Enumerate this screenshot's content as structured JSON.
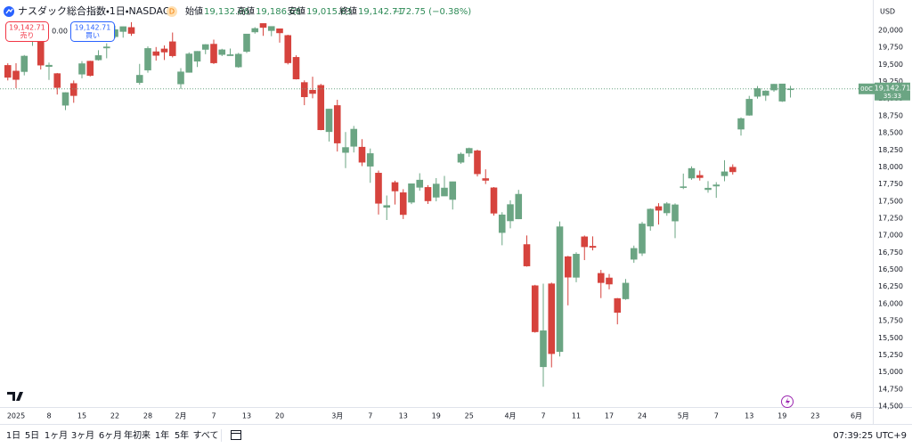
{
  "header": {
    "title": "ナスダック総合指数・1日・NASDAQ",
    "badge": "D",
    "open_label": "始値",
    "open": "19,132.06",
    "high_label": "高値",
    "high": "19,186.68",
    "low_label": "安値",
    "low": "19,015.63",
    "close_label": "終値",
    "close": "19,142.71",
    "change": "−72.75 (−0.38%)"
  },
  "trade_buttons": {
    "sell_price": "19,142.71",
    "sell_label": "売り",
    "spread": "0.00",
    "buy_price": "19,142.71",
    "buy_label": "買い"
  },
  "price_tag": {
    "label": "00C",
    "price": "19,142.71",
    "countdown": "35:33"
  },
  "toolbar": {
    "ranges": [
      "1日",
      "5日",
      "1ヶ月",
      "3ヶ月",
      "6ヶ月",
      "年初来",
      "1年",
      "5年",
      "すべて"
    ],
    "clock": "07:39:25 UTC+9"
  },
  "chart_data": {
    "type": "candlestick",
    "currency": "USD",
    "up_color": "#6ba583",
    "down_color": "#d6433d",
    "grid": false,
    "categories": [
      null,
      "2025",
      null,
      null,
      null,
      "8",
      null,
      null,
      null,
      "15",
      null,
      null,
      null,
      "22",
      null,
      null,
      null,
      "28",
      null,
      null,
      null,
      "2月",
      null,
      null,
      null,
      "7",
      null,
      null,
      null,
      "13",
      null,
      null,
      null,
      "20",
      null,
      null,
      null,
      null,
      null,
      null,
      "3月",
      null,
      null,
      null,
      "7",
      null,
      null,
      null,
      "13",
      null,
      null,
      null,
      "19",
      null,
      null,
      null,
      "25",
      null,
      null,
      null,
      null,
      "4月",
      null,
      null,
      null,
      "7",
      null,
      null,
      null,
      "11",
      null,
      null,
      null,
      "17",
      null,
      null,
      null,
      "24",
      null,
      null,
      null,
      null,
      "5月",
      null,
      null,
      null,
      "7",
      null,
      null,
      null,
      "13",
      null,
      null,
      null,
      "19",
      null,
      null,
      null,
      "23",
      null,
      null,
      null,
      null,
      "6月"
    ],
    "open": [
      19486,
      19403,
      19395,
      19851,
      19938,
      19469,
      19366,
      18903,
      19221,
      19358,
      19548,
      19567,
      19741,
      19906,
      19982,
      20041,
      19235,
      19418,
      19686,
      19727,
      19832,
      19215,
      19384,
      19547,
      19720,
      19797,
      19645,
      19628,
      19464,
      19690,
      19975,
      20099,
      19995,
      20022,
      19924,
      19604,
      19236,
      19123,
      19194,
      18516,
      18899,
      18212,
      18302,
      18290,
      18011,
      17910,
      17409,
      17772,
      17623,
      17484,
      17702,
      17701,
      17557,
      17575,
      17524,
      18069,
      18202,
      18236,
      17830,
      17695,
      17040,
      17211,
      17240,
      16865,
      16262,
      15076,
      16290,
      15299,
      16687,
      16385,
      16978,
      16840,
      16443,
      16376,
      16075,
      16070,
      16649,
      16738,
      17134,
      17420,
      17328,
      17209,
      17707,
      17837,
      17876,
      17668,
      17720,
      17871,
      17996,
      18553,
      18757,
      19033,
      19047,
      19126,
      18963,
      19132.06,
      null,
      null,
      null,
      null,
      null,
      null,
      null,
      null
    ],
    "high": [
      19517,
      19518,
      19638,
      20008,
      19945,
      19528,
      19375,
      19093,
      19265,
      19548,
      19554,
      19709,
      19809,
      20068,
      20054,
      20118,
      19508,
      19763,
      19755,
      19778,
      19967,
      19446,
      19677,
      19696,
      19797,
      19863,
      19729,
      19733,
      19669,
      19948,
      20045,
      20100,
      20056,
      20023,
      19935,
      19634,
      19267,
      19321,
      19216,
      18850,
      18983,
      18511,
      18600,
      18406,
      18270,
      17947,
      17582,
      17799,
      17675,
      17754,
      17908,
      17733,
      17837,
      17869,
      17785,
      18211,
      18283,
      18254,
      17965,
      17706,
      17338,
      17512,
      17665,
      16997,
      16275,
      16292,
      16308,
      17203,
      16699,
      16752,
      16997,
      16984,
      16493,
      16433,
      16082,
      16361,
      16849,
      17196,
      17393,
      17470,
      17486,
      17467,
      17903,
      18009,
      17947,
      17792,
      17778,
      18098,
      18038,
      18724,
      19040,
      19183,
      19121,
      19214,
      19217,
      19186.68,
      null,
      null,
      null,
      null,
      null,
      null,
      null,
      null
    ],
    "low": [
      19266,
      19153,
      19340,
      19771,
      19426,
      19273,
      19060,
      18832,
      18939,
      19298,
      19324,
      19556,
      19590,
      19882,
      19892,
      19919,
      19204,
      19380,
      19556,
      19565,
      19603,
      19141,
      19380,
      19463,
      19650,
      19507,
      19622,
      19627,
      19451,
      19668,
      19951,
      19918,
      19913,
      19819,
      19500,
      19279,
      18904,
      19004,
      18537,
      18372,
      18226,
      17983,
      18212,
      18013,
      17768,
      17304,
      17224,
      17450,
      17238,
      17457,
      17652,
      17458,
      17497,
      17575,
      17377,
      18047,
      18148,
      17861,
      17750,
      17287,
      16854,
      17101,
      17236,
      16541,
      15575,
      14784,
      15067,
      15227,
      15975,
      16314,
      16637,
      16779,
      16081,
      16209,
      15697,
      16055,
      16597,
      16697,
      17067,
      17157,
      17286,
      16959,
      17676,
      17812,
      17801,
      17623,
      17548,
      17790,
      17888,
      18458,
      18750,
      19000,
      18967,
      19101,
      18951,
      19015.63,
      null,
      null,
      null,
      null,
      null,
      null,
      null,
      null
    ],
    "close": [
      19311,
      19280,
      19622,
      19864,
      19490,
      19489,
      19162,
      19088,
      19044,
      19511,
      19338,
      19630,
      19757,
      20009,
      20053,
      19954,
      19342,
      19734,
      19632,
      19681,
      19627,
      19391,
      19654,
      19692,
      19791,
      19523,
      19714,
      19643,
      19650,
      19945,
      20026,
      20041,
      20056,
      19962,
      19524,
      19287,
      19026,
      19075,
      18544,
      18847,
      18350,
      18285,
      18553,
      18069,
      18196,
      17468,
      17436,
      17648,
      17303,
      17754,
      17808,
      17504,
      17750,
      17692,
      17784,
      18188,
      18272,
      17900,
      17804,
      17323,
      17299,
      17450,
      17601,
      16551,
      15588,
      15603,
      15268,
      17125,
      16387,
      16724,
      16832,
      16823,
      16307,
      16286,
      15871,
      16300,
      16808,
      17166,
      17383,
      17366,
      17462,
      17446,
      17711,
      17978,
      17844,
      17690,
      17738,
      17929,
      17929,
      18708,
      18991,
      19147,
      19112,
      19211,
      19215,
      19142.71,
      null,
      null,
      null,
      null,
      null,
      null,
      null,
      null
    ],
    "ylim": [
      14500,
      20443
    ],
    "yticks": [
      {
        "value": 14500,
        "label": "14,500"
      },
      {
        "value": 14750,
        "label": "14,750"
      },
      {
        "value": 15000,
        "label": "15,000"
      },
      {
        "value": 15250,
        "label": "15,250"
      },
      {
        "value": 15500,
        "label": "15,500"
      },
      {
        "value": 15750,
        "label": "15,750"
      },
      {
        "value": 16000,
        "label": "16,000"
      },
      {
        "value": 16250,
        "label": "16,250"
      },
      {
        "value": 16500,
        "label": "16,500"
      },
      {
        "value": 16750,
        "label": "16,750"
      },
      {
        "value": 17000,
        "label": "17,000"
      },
      {
        "value": 17250,
        "label": "17,250"
      },
      {
        "value": 17500,
        "label": "17,500"
      },
      {
        "value": 17750,
        "label": "17,750"
      },
      {
        "value": 18000,
        "label": "18,000"
      },
      {
        "value": 18250,
        "label": "18,250"
      },
      {
        "value": 18500,
        "label": "18,500"
      },
      {
        "value": 18750,
        "label": "18,750"
      },
      {
        "value": 19000,
        "label": "19,000"
      },
      {
        "value": 19250,
        "label": "19,250"
      },
      {
        "value": 19500,
        "label": "19,500"
      },
      {
        "value": 19750,
        "label": "19,750"
      },
      {
        "value": 20000,
        "label": "20,000"
      }
    ]
  }
}
